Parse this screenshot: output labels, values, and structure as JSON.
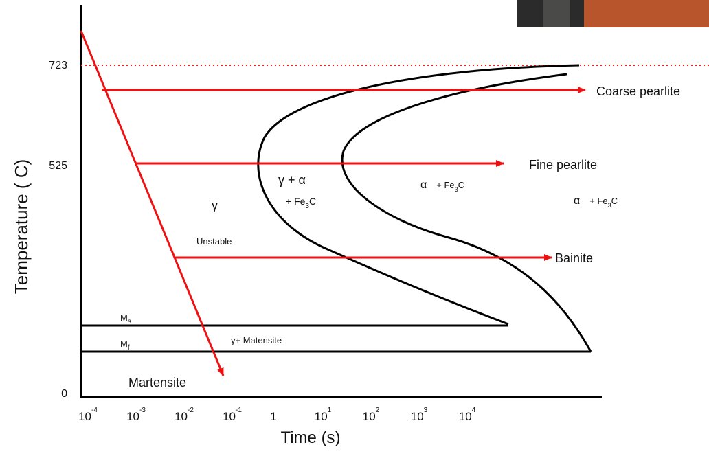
{
  "axes": {
    "y_label": "Temperature ( C)",
    "x_label": "Time (s)",
    "y_ticks": [
      "723",
      "525",
      "0"
    ],
    "x_ticks": [
      {
        "base": "10",
        "exp": "-4"
      },
      {
        "base": "10",
        "exp": "-3"
      },
      {
        "base": "10",
        "exp": "-2"
      },
      {
        "base": "10",
        "exp": "-1"
      },
      {
        "base": "1"
      },
      {
        "base": "10",
        "exp": "1"
      },
      {
        "base": "10",
        "exp": "2"
      },
      {
        "base": "10",
        "exp": "3"
      },
      {
        "base": "10",
        "exp": "4"
      }
    ]
  },
  "products": [
    "Coarse pearlite",
    "Fine pearlite",
    "Bainite",
    "Martensite"
  ],
  "regions": {
    "austenite": {
      "symbol": "γ",
      "note": "Unstable"
    },
    "transforming": {
      "phases": "γ + α",
      "plus": "+ Fe",
      "sub": "3",
      "tail": "C"
    },
    "product_mid": {
      "phase": "α",
      "plus": "+ Fe",
      "sub": "3",
      "tail": "C"
    },
    "product_right": {
      "phase": "α",
      "plus": "+ Fe",
      "sub": "3",
      "tail": "C"
    },
    "ms": {
      "main": "M",
      "sub": "s"
    },
    "mf": {
      "main": "M",
      "sub": "f"
    },
    "martensite_mix": "γ+ Matensite"
  }
}
